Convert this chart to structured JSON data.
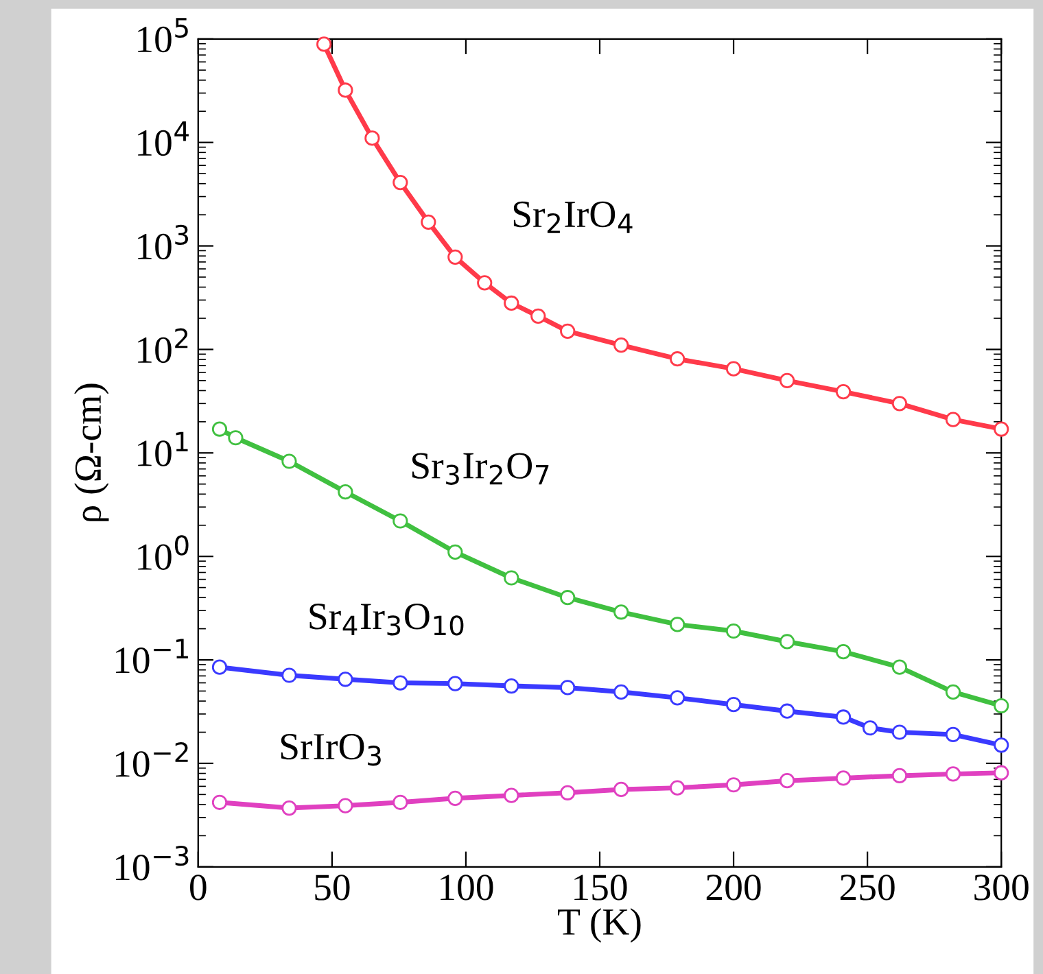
{
  "chart_data": {
    "type": "line",
    "xlabel": "T (K)",
    "ylabel": "ρ (Ω-cm)",
    "log": "y",
    "marker": "circle",
    "grid": false,
    "xlim": [
      0,
      300
    ],
    "xticks": [
      0,
      50,
      100,
      150,
      200,
      250,
      300
    ],
    "ylim": [
      0.001,
      100000
    ],
    "yticks": [
      {
        "value": 0.001,
        "label": "10$^{−3}$"
      },
      {
        "value": 0.01,
        "label": "10$^{−2}$"
      },
      {
        "value": 0.1,
        "label": "10$^{−1}$"
      },
      {
        "value": 1,
        "label": "10$^{0}$"
      },
      {
        "value": 10,
        "label": "10$^{1}$"
      },
      {
        "value": 100,
        "label": "10$^{2}$"
      },
      {
        "value": 1000,
        "label": "10$^{3}$"
      },
      {
        "value": 10000,
        "label": "10$^{4}$"
      },
      {
        "value": 100000,
        "label": "10$^{5}$"
      }
    ],
    "series": [
      {
        "name": "Sr$_{2}$IrO$_{4}$",
        "color": "#ff3a4a",
        "x": [
          47,
          55,
          65,
          75.5,
          86,
          96,
          107,
          117,
          127,
          138,
          158,
          179,
          200,
          220,
          241,
          262,
          282,
          300
        ],
        "values": [
          89000,
          32000,
          11000,
          4100,
          1700,
          780,
          440,
          280,
          210,
          150,
          110,
          81,
          65,
          50,
          39,
          30,
          21,
          17
        ]
      },
      {
        "name": "Sr$_{3}$Ir$_{2}$O$_{7}$",
        "color": "#40c040",
        "x": [
          8,
          14,
          34,
          55,
          75.5,
          96,
          117,
          138,
          158,
          179,
          200,
          220,
          241,
          262,
          282,
          300
        ],
        "values": [
          17,
          14,
          8.3,
          4.2,
          2.2,
          1.1,
          0.62,
          0.4,
          0.29,
          0.22,
          0.19,
          0.15,
          0.12,
          0.085,
          0.049,
          0.036
        ]
      },
      {
        "name": "Sr$_{4}$Ir$_{3}$O$_{10}$",
        "color": "#3a3aff",
        "x": [
          8,
          34,
          55,
          75.5,
          96,
          117,
          138,
          158,
          179,
          200,
          220,
          241,
          251,
          262,
          282,
          300
        ],
        "values": [
          0.085,
          0.071,
          0.065,
          0.06,
          0.059,
          0.056,
          0.054,
          0.049,
          0.043,
          0.037,
          0.032,
          0.028,
          0.022,
          0.02,
          0.019,
          0.015
        ]
      },
      {
        "name": "SrIrO$_{3}$",
        "color": "#e040c0",
        "x": [
          8,
          34,
          55,
          75.5,
          96,
          117,
          138,
          158,
          179,
          200,
          220,
          241,
          262,
          282,
          300
        ],
        "values": [
          0.0042,
          0.0037,
          0.0039,
          0.0042,
          0.0046,
          0.0049,
          0.0052,
          0.0056,
          0.0058,
          0.0062,
          0.0068,
          0.0072,
          0.0076,
          0.0079,
          0.0081
        ]
      }
    ]
  }
}
